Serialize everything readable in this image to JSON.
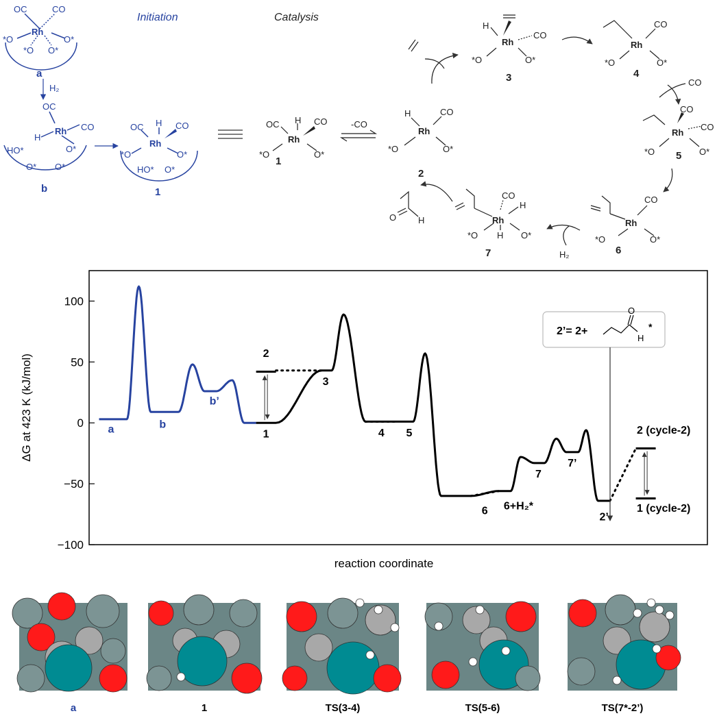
{
  "scheme": {
    "initiation_label": "Initiation",
    "catalysis_label": "Catalysis",
    "rh": "Rh",
    "co": "CO",
    "oc": "OC",
    "h": "H",
    "h2": "H₂",
    "minus_co": "-CO",
    "o_star": "O*",
    "star_o": "*O",
    "ho_star": "HO*",
    "species": {
      "a": "a",
      "b": "b",
      "one": "1",
      "two": "2",
      "three": "3",
      "four": "4",
      "five": "5",
      "six": "6",
      "seven": "7"
    }
  },
  "chart_data": {
    "type": "line",
    "xlabel": "reaction coordinate",
    "ylabel": "ΔG at 423 K (kJ/mol)",
    "ylim": [
      -100,
      125
    ],
    "yticks": [
      -100,
      -50,
      0,
      50,
      100
    ],
    "ytick_labels": [
      "−100",
      "−50",
      "0",
      "50",
      "100"
    ],
    "series": [
      {
        "name": "initiation",
        "color": "#2743a0",
        "x": [
          0.0,
          0.7,
          1.0,
          1.3,
          2.0,
          2.35,
          2.65,
          2.95,
          3.35,
          3.65,
          3.95
        ],
        "y": [
          3,
          3,
          112,
          9,
          9,
          48,
          26,
          26,
          35,
          0,
          0
        ]
      },
      {
        "name": "catalysis",
        "color": "#000000",
        "x": [
          3.95,
          4.45,
          5.6,
          5.85,
          6.15,
          6.7,
          7.45,
          7.9,
          8.2,
          8.6,
          9.35,
          10.05,
          10.35,
          10.6,
          10.95,
          11.2,
          11.5,
          11.75,
          12.05,
          12.25,
          12.55,
          12.85
        ],
        "y": [
          0,
          0,
          43,
          43,
          89,
          1,
          1,
          1,
          57,
          -60,
          -60,
          -56,
          -56,
          -28,
          -33,
          -33,
          -13,
          -24,
          -24,
          -6,
          -64,
          -64
        ]
      }
    ],
    "dotted_connectors": [
      {
        "x": [
          4.45,
          5.6
        ],
        "y": [
          43,
          43
        ]
      },
      {
        "x": [
          6.7,
          7.45
        ],
        "y": [
          1,
          1
        ]
      },
      {
        "x": [
          9.35,
          10.05
        ],
        "y": [
          -60,
          -56
        ]
      },
      {
        "x": [
          12.85,
          13.5
        ],
        "y": [
          -64,
          -21
        ]
      }
    ],
    "levels": [
      {
        "label": "2",
        "x": [
          3.95,
          4.45
        ],
        "y": 42
      },
      {
        "label": "2 (cycle-2)",
        "x": [
          13.5,
          14.0
        ],
        "y": -21
      },
      {
        "label": "1 (cycle-2)",
        "x": [
          13.5,
          14.0
        ],
        "y": -62
      }
    ],
    "point_labels": [
      {
        "text": "a",
        "x": 0.3,
        "y": -8,
        "color": "#2743a0"
      },
      {
        "text": "b",
        "x": 1.6,
        "y": -4,
        "color": "#2743a0"
      },
      {
        "text": "b’",
        "x": 2.9,
        "y": 15,
        "color": "#2743a0"
      },
      {
        "text": "2",
        "x": 4.2,
        "y": 54,
        "color": "#000000"
      },
      {
        "text": "1",
        "x": 4.2,
        "y": -12,
        "color": "#000000"
      },
      {
        "text": "3",
        "x": 5.7,
        "y": 31,
        "color": "#000000"
      },
      {
        "text": "4",
        "x": 7.1,
        "y": -11,
        "color": "#000000"
      },
      {
        "text": "5",
        "x": 7.8,
        "y": -11,
        "color": "#000000"
      },
      {
        "text": "6",
        "x": 9.7,
        "y": -75,
        "color": "#000000"
      },
      {
        "text": "6+H₂*",
        "x": 10.55,
        "y": -71,
        "color": "#000000"
      },
      {
        "text": "7",
        "x": 11.05,
        "y": -45,
        "color": "#000000"
      },
      {
        "text": "7’",
        "x": 11.9,
        "y": -36,
        "color": "#000000"
      },
      {
        "text": "2’",
        "x": 12.7,
        "y": -80,
        "color": "#000000"
      },
      {
        "text": "2 (cycle-2)",
        "x": 14.2,
        "y": -9,
        "color": "#000000"
      },
      {
        "text": "1 (cycle-2)",
        "x": 14.2,
        "y": -73,
        "color": "#000000"
      }
    ],
    "annotation": {
      "text_prefix": "2’= 2+",
      "star": "*",
      "h": "H"
    }
  },
  "snapshots": [
    {
      "label": "a",
      "label_color": "#2743a0"
    },
    {
      "label": "1",
      "label_color": "#000000"
    },
    {
      "label": "TS(3-4)",
      "label_color": "#000000"
    },
    {
      "label": "TS(5-6)",
      "label_color": "#000000"
    },
    {
      "label": "TS(7*-2’)",
      "label_color": "#000000"
    }
  ]
}
